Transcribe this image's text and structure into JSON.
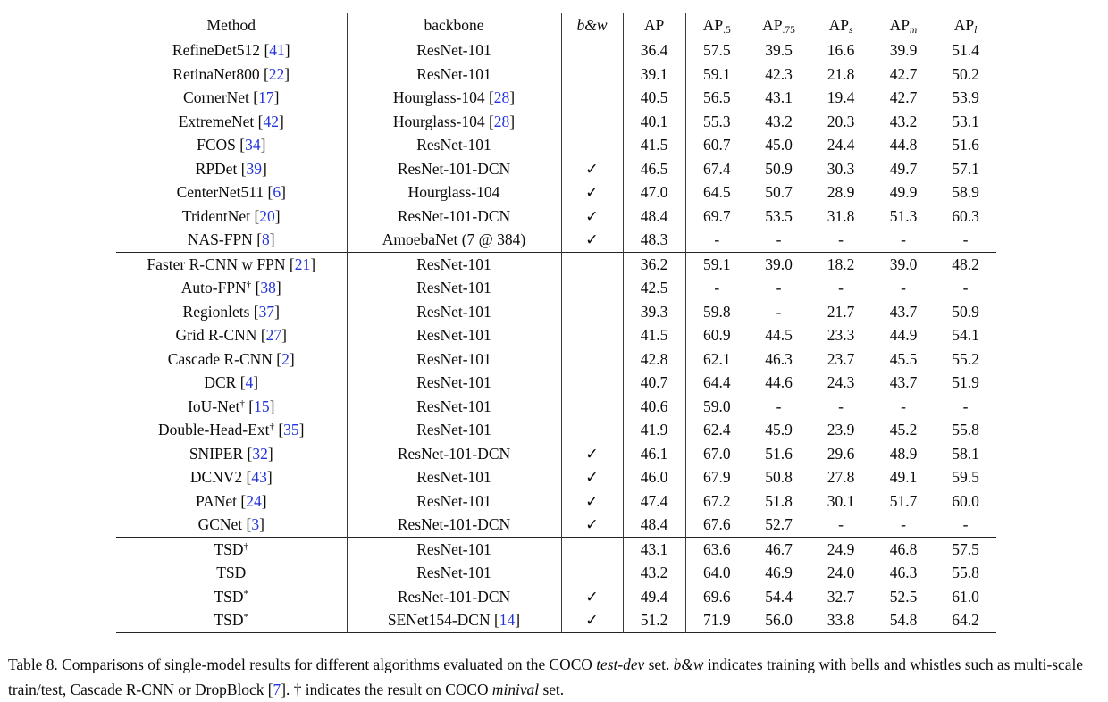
{
  "colors": {
    "cite_blue": "#2133dd",
    "text": "#0b0b0b",
    "rule": "#232323"
  },
  "glyphs": {
    "check": "✓",
    "lbracket": " [",
    "rbracket": "]",
    "dash": "-"
  },
  "table": {
    "columns": [
      {
        "label": "Method"
      },
      {
        "label": "backbone"
      },
      {
        "label": "b&w",
        "italic": true
      },
      {
        "label": "AP"
      },
      {
        "label": "AP",
        "sub": ".5"
      },
      {
        "label": "AP",
        "sub": ".75"
      },
      {
        "label": "AP",
        "sub": "s",
        "sub_italic": true
      },
      {
        "label": "AP",
        "sub": "m",
        "sub_italic": true
      },
      {
        "label": "AP",
        "sub": "l",
        "sub_italic": true
      }
    ],
    "sections": [
      {
        "name": "single-stage-detectors",
        "rows": [
          {
            "method": "RefineDet512",
            "msup": "",
            "mcite": "41",
            "mbold": false,
            "backbone": "ResNet-101",
            "bcite": "",
            "bw": false,
            "values": [
              "36.4",
              "57.5",
              "39.5",
              "16.6",
              "39.9",
              "51.4"
            ],
            "vbold": [
              0,
              0,
              0,
              0,
              0,
              0
            ]
          },
          {
            "method": "RetinaNet800",
            "msup": "",
            "mcite": "22",
            "mbold": false,
            "backbone": "ResNet-101",
            "bcite": "",
            "bw": false,
            "values": [
              "39.1",
              "59.1",
              "42.3",
              "21.8",
              "42.7",
              "50.2"
            ],
            "vbold": [
              0,
              0,
              0,
              0,
              0,
              0
            ]
          },
          {
            "method": "CornerNet",
            "msup": "",
            "mcite": "17",
            "mbold": false,
            "backbone": "Hourglass-104",
            "bcite": "28",
            "bw": false,
            "values": [
              "40.5",
              "56.5",
              "43.1",
              "19.4",
              "42.7",
              "53.9"
            ],
            "vbold": [
              0,
              0,
              0,
              0,
              0,
              0
            ]
          },
          {
            "method": "ExtremeNet",
            "msup": "",
            "mcite": "42",
            "mbold": false,
            "backbone": "Hourglass-104",
            "bcite": "28",
            "bw": false,
            "values": [
              "40.1",
              "55.3",
              "43.2",
              "20.3",
              "43.2",
              "53.1"
            ],
            "vbold": [
              0,
              0,
              0,
              0,
              0,
              0
            ]
          },
          {
            "method": "FCOS",
            "msup": "",
            "mcite": "34",
            "mbold": false,
            "backbone": "ResNet-101",
            "bcite": "",
            "bw": false,
            "values": [
              "41.5",
              "60.7",
              "45.0",
              "24.4",
              "44.8",
              "51.6"
            ],
            "vbold": [
              0,
              0,
              0,
              0,
              0,
              0
            ]
          },
          {
            "method": "RPDet",
            "msup": "",
            "mcite": "39",
            "mbold": false,
            "backbone": "ResNet-101-DCN",
            "bcite": "",
            "bw": true,
            "values": [
              "46.5",
              "67.4",
              "50.9",
              "30.3",
              "49.7",
              "57.1"
            ],
            "vbold": [
              0,
              0,
              0,
              0,
              0,
              0
            ]
          },
          {
            "method": "CenterNet511",
            "msup": "",
            "mcite": "6",
            "mbold": false,
            "backbone": "Hourglass-104",
            "bcite": "",
            "bw": true,
            "values": [
              "47.0",
              "64.5",
              "50.7",
              "28.9",
              "49.9",
              "58.9"
            ],
            "vbold": [
              0,
              0,
              0,
              0,
              0,
              0
            ]
          },
          {
            "method": "TridentNet",
            "msup": "",
            "mcite": "20",
            "mbold": false,
            "backbone": "ResNet-101-DCN",
            "bcite": "",
            "bw": true,
            "values": [
              "48.4",
              "69.7",
              "53.5",
              "31.8",
              "51.3",
              "60.3"
            ],
            "vbold": [
              0,
              0,
              0,
              0,
              0,
              0
            ]
          },
          {
            "method": "NAS-FPN",
            "msup": "",
            "mcite": "8",
            "mbold": false,
            "backbone": "AmoebaNet (7 @ 384)",
            "bcite": "",
            "bw": true,
            "values": [
              "48.3",
              "-",
              "-",
              "-",
              "-",
              "-"
            ],
            "vbold": [
              0,
              0,
              0,
              0,
              0,
              0
            ]
          }
        ]
      },
      {
        "name": "two-stage-detectors",
        "rows": [
          {
            "method": "Faster R-CNN w FPN",
            "msup": "",
            "mcite": "21",
            "mbold": false,
            "backbone": "ResNet-101",
            "bcite": "",
            "bw": false,
            "values": [
              "36.2",
              "59.1",
              "39.0",
              "18.2",
              "39.0",
              "48.2"
            ],
            "vbold": [
              0,
              0,
              0,
              0,
              0,
              0
            ]
          },
          {
            "method": "Auto-FPN",
            "msup": "†",
            "mcite": "38",
            "mbold": false,
            "backbone": "ResNet-101",
            "bcite": "",
            "bw": false,
            "values": [
              "42.5",
              "-",
              "-",
              "-",
              "-",
              "-"
            ],
            "vbold": [
              0,
              0,
              0,
              0,
              0,
              0
            ]
          },
          {
            "method": "Regionlets",
            "msup": "",
            "mcite": "37",
            "mbold": false,
            "backbone": "ResNet-101",
            "bcite": "",
            "bw": false,
            "values": [
              "39.3",
              "59.8",
              "-",
              "21.7",
              "43.7",
              "50.9"
            ],
            "vbold": [
              0,
              0,
              0,
              0,
              0,
              0
            ]
          },
          {
            "method": "Grid R-CNN",
            "msup": "",
            "mcite": "27",
            "mbold": false,
            "backbone": "ResNet-101",
            "bcite": "",
            "bw": false,
            "values": [
              "41.5",
              "60.9",
              "44.5",
              "23.3",
              "44.9",
              "54.1"
            ],
            "vbold": [
              0,
              0,
              0,
              0,
              0,
              0
            ]
          },
          {
            "method": "Cascade R-CNN",
            "msup": "",
            "mcite": "2",
            "mbold": false,
            "backbone": "ResNet-101",
            "bcite": "",
            "bw": false,
            "values": [
              "42.8",
              "62.1",
              "46.3",
              "23.7",
              "45.5",
              "55.2"
            ],
            "vbold": [
              0,
              0,
              0,
              0,
              0,
              0
            ]
          },
          {
            "method": "DCR",
            "msup": "",
            "mcite": "4",
            "mbold": false,
            "backbone": "ResNet-101",
            "bcite": "",
            "bw": false,
            "values": [
              "40.7",
              "64.4",
              "44.6",
              "24.3",
              "43.7",
              "51.9"
            ],
            "vbold": [
              0,
              0,
              0,
              0,
              0,
              0
            ]
          },
          {
            "method": "IoU-Net",
            "msup": "†",
            "mcite": "15",
            "mbold": false,
            "backbone": "ResNet-101",
            "bcite": "",
            "bw": false,
            "values": [
              "40.6",
              "59.0",
              "-",
              "-",
              "-",
              "-"
            ],
            "vbold": [
              0,
              0,
              0,
              0,
              0,
              0
            ]
          },
          {
            "method": "Double-Head-Ext",
            "msup": "†",
            "mcite": "35",
            "mbold": false,
            "backbone": "ResNet-101",
            "bcite": "",
            "bw": false,
            "values": [
              "41.9",
              "62.4",
              "45.9",
              "23.9",
              "45.2",
              "55.8"
            ],
            "vbold": [
              0,
              0,
              0,
              0,
              0,
              0
            ]
          },
          {
            "method": "SNIPER",
            "msup": "",
            "mcite": "32",
            "mbold": false,
            "backbone": "ResNet-101-DCN",
            "bcite": "",
            "bw": true,
            "values": [
              "46.1",
              "67.0",
              "51.6",
              "29.6",
              "48.9",
              "58.1"
            ],
            "vbold": [
              0,
              0,
              0,
              0,
              0,
              0
            ]
          },
          {
            "method": "DCNV2",
            "msup": "",
            "mcite": "43",
            "mbold": false,
            "backbone": "ResNet-101",
            "bcite": "",
            "bw": true,
            "values": [
              "46.0",
              "67.9",
              "50.8",
              "27.8",
              "49.1",
              "59.5"
            ],
            "vbold": [
              0,
              0,
              0,
              0,
              0,
              0
            ]
          },
          {
            "method": "PANet",
            "msup": "",
            "mcite": "24",
            "mbold": false,
            "backbone": "ResNet-101",
            "bcite": "",
            "bw": true,
            "values": [
              "47.4",
              "67.2",
              "51.8",
              "30.1",
              "51.7",
              "60.0"
            ],
            "vbold": [
              0,
              0,
              0,
              0,
              0,
              0
            ]
          },
          {
            "method": "GCNet",
            "msup": "",
            "mcite": "3",
            "mbold": false,
            "backbone": "ResNet-101-DCN",
            "bcite": "",
            "bw": true,
            "values": [
              "48.4",
              "67.6",
              "52.7",
              "-",
              "-",
              "-"
            ],
            "vbold": [
              0,
              0,
              0,
              0,
              0,
              0
            ]
          }
        ]
      },
      {
        "name": "tsd-ours",
        "rows": [
          {
            "method": "TSD",
            "msup": "†",
            "mcite": "",
            "mbold": true,
            "backbone": "ResNet-101",
            "bcite": "",
            "bw": false,
            "values": [
              "43.1",
              "63.6",
              "46.7",
              "24.9",
              "46.8",
              "57.5"
            ],
            "vbold": [
              1,
              1,
              1,
              1,
              1,
              1
            ]
          },
          {
            "method": "TSD",
            "msup": "",
            "mcite": "",
            "mbold": true,
            "backbone": "ResNet-101",
            "bcite": "",
            "bw": false,
            "values": [
              "43.2",
              "64.0",
              "46.9",
              "24.0",
              "46.3",
              "55.8"
            ],
            "vbold": [
              1,
              0,
              1,
              1,
              1,
              1
            ]
          },
          {
            "method": "TSD",
            "msup": "*",
            "mcite": "",
            "mbold": true,
            "backbone": "ResNet-101-DCN",
            "bcite": "",
            "bw": true,
            "values": [
              "49.4",
              "69.6",
              "54.4",
              "32.7",
              "52.5",
              "61.0"
            ],
            "vbold": [
              1,
              0,
              1,
              1,
              1,
              1
            ]
          },
          {
            "method": "TSD",
            "msup": "*",
            "mcite": "",
            "mbold": true,
            "backbone": "SENet154-DCN",
            "bcite": "14",
            "bw": true,
            "values": [
              "51.2",
              "71.9",
              "56.0",
              "33.8",
              "54.8",
              "64.2"
            ],
            "vbold": [
              1,
              1,
              1,
              1,
              1,
              1
            ]
          }
        ]
      }
    ]
  },
  "caption": {
    "segments": [
      {
        "t": "Table 8. Comparisons of single-model results for different algorithms evaluated on the COCO ",
        "s": "n"
      },
      {
        "t": "test-dev",
        "s": "i"
      },
      {
        "t": " set.  ",
        "s": "n"
      },
      {
        "t": "b&w",
        "s": "i"
      },
      {
        "t": " indicates training with bells and whistles such as multi-scale train/test, Cascade R-CNN or DropBlock [",
        "s": "n"
      },
      {
        "t": "7",
        "s": "c"
      },
      {
        "t": "]. † indicates the result on COCO ",
        "s": "n"
      },
      {
        "t": "minival",
        "s": "i"
      },
      {
        "t": " set.",
        "s": "n"
      }
    ]
  }
}
